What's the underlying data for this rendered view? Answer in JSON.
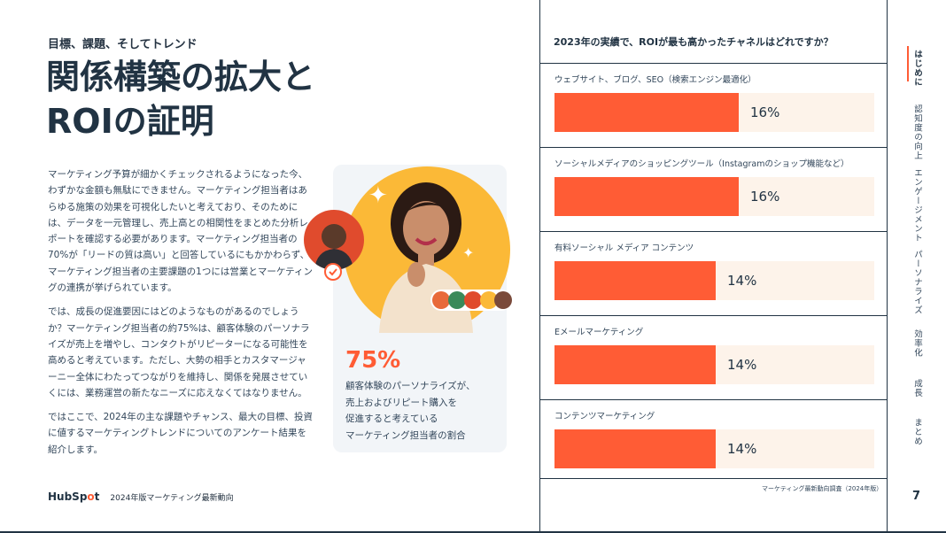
{
  "left": {
    "kicker": "目標、課題、そしてトレンド",
    "headline_line1": "関係構築の拡大と",
    "headline_line2": "ROIの証明",
    "paragraphs": [
      "マーケティング予算が細かくチェックされるようになった今、わずかな金額も無駄にできません。マーケティング担当者はあらゆる施策の効果を可視化したいと考えており、そのためには、データを一元管理し、売上高との相関性をまとめた分析レポートを確認する必要があります。マーケティング担当者の70%が「リードの質は高い」と回答しているにもかかわらず、マーケティング担当者の主要課題の1つには営業とマーケティングの連携が挙げられています。",
      "では、成長の促進要因にはどのようなものがあるのでしょうか？マーケティング担当者の約75%は、顧客体験のパーソナライズが売上を増やし、コンタクトがリピーターになる可能性を高めると考えています。ただし、大勢の相手とカスタマージャーニー全体にわたってつながりを維持し、関係を発展させていくには、業務運営の新たなニーズに応えなくてはなりません。",
      "ではここで、2024年の主な課題やチャンス、最大の目標、投資に値するマーケティングトレンドについてのアンケート結果を紹介します。"
    ],
    "stat": {
      "value": "75%",
      "desc_lines": [
        "顧客体験のパーソナライズが、",
        "売上およびリピート購入を",
        "促進すると考えている",
        "マーケティング担当者の割合"
      ]
    },
    "footer": {
      "logo_a": "HubSp",
      "logo_b": "o",
      "logo_c": "t",
      "report": "2024年版マーケティング最新動向"
    }
  },
  "chart_data": {
    "type": "bar",
    "title": "2023年の実績で、ROIが最も高かったチャネルはどれですか？",
    "categories": [
      "ウェブサイト、ブログ、SEO（検索エンジン最適化）",
      "ソーシャルメディアのショッピングツール（Instagramのショップ機能など）",
      "有料ソーシャル メディア コンテンツ",
      "Eメールマーケティング",
      "コンテンツマーケティング"
    ],
    "values": [
      16,
      16,
      14,
      14,
      14
    ],
    "value_labels": [
      "16%",
      "16%",
      "14%",
      "14%",
      "14%"
    ],
    "xlim": [
      0,
      100
    ],
    "bar_color": "#ff5c35",
    "track_color": "#fdf3ea",
    "source": "マーケティング最新動向調査（2024年版）"
  },
  "nav": {
    "items": [
      "はじめに",
      "認知度の向上",
      "エンゲージメント",
      "パーソナライズ",
      "効率化",
      "成長",
      "まとめ"
    ],
    "active_index": 0,
    "page_number": "7"
  },
  "colors": {
    "accent": "#ff5c35",
    "navy": "#213343",
    "yellow": "#fbb937"
  }
}
